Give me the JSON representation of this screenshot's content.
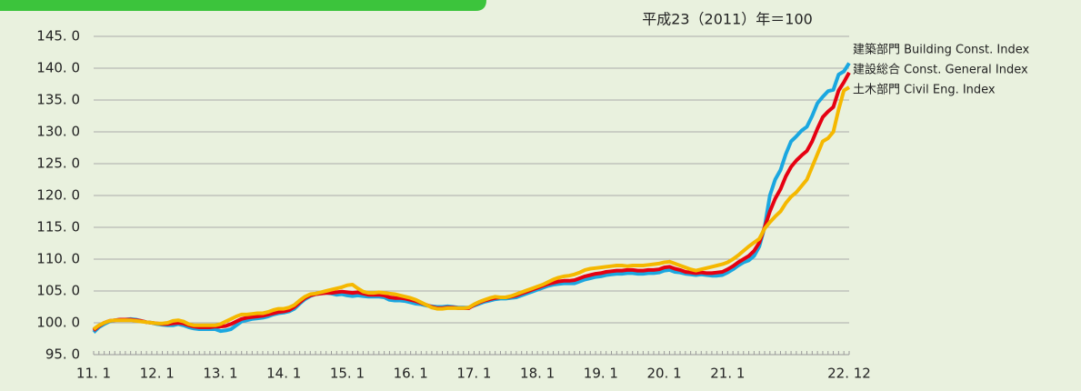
{
  "chart_data": {
    "type": "line",
    "annotation": "平成23（2011）年＝100",
    "categories": [
      "11. 1",
      null,
      null,
      null,
      null,
      null,
      null,
      null,
      null,
      null,
      null,
      null,
      "12. 1",
      null,
      null,
      null,
      null,
      null,
      null,
      null,
      null,
      null,
      null,
      null,
      "13. 1",
      null,
      null,
      null,
      null,
      null,
      null,
      null,
      null,
      null,
      null,
      null,
      "14. 1",
      null,
      null,
      null,
      null,
      null,
      null,
      null,
      null,
      null,
      null,
      null,
      "15. 1",
      null,
      null,
      null,
      null,
      null,
      null,
      null,
      null,
      null,
      null,
      null,
      "16. 1",
      null,
      null,
      null,
      null,
      null,
      null,
      null,
      null,
      null,
      null,
      null,
      "17. 1",
      null,
      null,
      null,
      null,
      null,
      null,
      null,
      null,
      null,
      null,
      null,
      "18. 1",
      null,
      null,
      null,
      null,
      null,
      null,
      null,
      null,
      null,
      null,
      null,
      "19. 1",
      null,
      null,
      null,
      null,
      null,
      null,
      null,
      null,
      null,
      null,
      null,
      "20. 1",
      null,
      null,
      null,
      null,
      null,
      null,
      null,
      null,
      null,
      null,
      null,
      "21. 1",
      null,
      null,
      null,
      null,
      null,
      null,
      null,
      null,
      null,
      null,
      null,
      null,
      null,
      null,
      null,
      null,
      null,
      null,
      null,
      null,
      null,
      null,
      "22. 12"
    ],
    "series": [
      {
        "name": "建築部門  Building Const. Index",
        "color": "#1aa7e0",
        "values": [
          98.5,
          99.3,
          99.8,
          100.2,
          100.4,
          100.5,
          100.5,
          100.6,
          100.5,
          100.3,
          100.1,
          100.0,
          99.8,
          99.7,
          99.6,
          99.6,
          99.8,
          99.6,
          99.3,
          99.1,
          99.0,
          99.0,
          99.0,
          99.0,
          98.7,
          98.8,
          99.0,
          99.6,
          100.2,
          100.4,
          100.6,
          100.7,
          100.8,
          101.0,
          101.3,
          101.5,
          101.6,
          101.8,
          102.2,
          103.0,
          103.7,
          104.2,
          104.5,
          104.6,
          104.7,
          104.6,
          104.4,
          104.5,
          104.3,
          104.2,
          104.3,
          104.2,
          104.1,
          104.1,
          104.1,
          104.0,
          103.6,
          103.5,
          103.5,
          103.4,
          103.2,
          103.0,
          102.9,
          102.7,
          102.6,
          102.5,
          102.5,
          102.6,
          102.5,
          102.4,
          102.4,
          102.4,
          102.7,
          103.0,
          103.3,
          103.5,
          103.7,
          103.8,
          103.8,
          103.9,
          104.0,
          104.3,
          104.6,
          104.9,
          105.2,
          105.5,
          105.8,
          106.0,
          106.1,
          106.2,
          106.2,
          106.2,
          106.5,
          106.8,
          107.0,
          107.2,
          107.3,
          107.5,
          107.6,
          107.7,
          107.7,
          107.8,
          107.8,
          107.7,
          107.7,
          107.8,
          107.8,
          107.9,
          108.2,
          108.3,
          108.0,
          107.9,
          107.7,
          107.6,
          107.5,
          107.6,
          107.5,
          107.4,
          107.4,
          107.5,
          107.9,
          108.4,
          109.0,
          109.5,
          109.8,
          110.5,
          112.0,
          115.0,
          120.0,
          122.5,
          124.0,
          126.5,
          128.5,
          129.3,
          130.2,
          130.8,
          132.5,
          134.5,
          135.5,
          136.4,
          136.6,
          139.0,
          139.5,
          140.8
        ]
      },
      {
        "name": "建設総合  Const. General Index",
        "color": "#e60012",
        "values": [
          98.8,
          99.5,
          100.0,
          100.3,
          100.4,
          100.5,
          100.5,
          100.5,
          100.4,
          100.3,
          100.1,
          100.0,
          99.9,
          99.8,
          99.8,
          99.9,
          100.0,
          99.9,
          99.6,
          99.4,
          99.3,
          99.3,
          99.3,
          99.4,
          99.4,
          99.5,
          99.8,
          100.2,
          100.6,
          100.8,
          100.9,
          101.0,
          101.1,
          101.3,
          101.5,
          101.7,
          101.8,
          102.0,
          102.5,
          103.2,
          103.9,
          104.3,
          104.5,
          104.6,
          104.7,
          104.7,
          104.8,
          104.9,
          104.8,
          104.7,
          104.8,
          104.6,
          104.4,
          104.4,
          104.4,
          104.3,
          104.0,
          103.9,
          103.9,
          103.8,
          103.6,
          103.4,
          103.1,
          102.8,
          102.5,
          102.3,
          102.3,
          102.4,
          102.4,
          102.3,
          102.3,
          102.3,
          102.8,
          103.2,
          103.5,
          103.7,
          103.9,
          104.0,
          104.0,
          104.1,
          104.3,
          104.6,
          104.9,
          105.2,
          105.5,
          105.8,
          106.1,
          106.3,
          106.5,
          106.6,
          106.6,
          106.7,
          107.0,
          107.3,
          107.5,
          107.7,
          107.8,
          108.0,
          108.1,
          108.2,
          108.2,
          108.3,
          108.3,
          108.2,
          108.2,
          108.3,
          108.3,
          108.4,
          108.7,
          108.8,
          108.5,
          108.3,
          108.0,
          107.9,
          107.8,
          107.9,
          107.8,
          107.8,
          107.9,
          108.0,
          108.4,
          108.9,
          109.5,
          110.0,
          110.5,
          111.3,
          112.6,
          115.0,
          117.5,
          119.5,
          121.0,
          123.0,
          124.5,
          125.5,
          126.3,
          127.0,
          128.5,
          130.5,
          132.3,
          133.2,
          133.9,
          136.5,
          137.8,
          139.3
        ]
      },
      {
        "name": "土木部門  Civil Eng. Index",
        "color": "#f5b800",
        "values": [
          99.0,
          99.6,
          100.0,
          100.3,
          100.4,
          100.4,
          100.4,
          100.4,
          100.3,
          100.2,
          100.1,
          100.0,
          99.9,
          99.9,
          100.0,
          100.3,
          100.4,
          100.2,
          99.8,
          99.6,
          99.6,
          99.6,
          99.6,
          99.6,
          99.8,
          100.2,
          100.6,
          101.0,
          101.3,
          101.3,
          101.4,
          101.5,
          101.5,
          101.7,
          102.0,
          102.2,
          102.2,
          102.4,
          102.8,
          103.5,
          104.1,
          104.5,
          104.6,
          104.8,
          105.0,
          105.2,
          105.4,
          105.6,
          105.9,
          106.0,
          105.4,
          104.9,
          104.7,
          104.7,
          104.8,
          104.7,
          104.6,
          104.5,
          104.3,
          104.1,
          103.9,
          103.6,
          103.2,
          102.8,
          102.4,
          102.2,
          102.2,
          102.3,
          102.3,
          102.3,
          102.3,
          102.4,
          102.9,
          103.3,
          103.6,
          103.9,
          104.1,
          104.0,
          104.0,
          104.2,
          104.5,
          104.8,
          105.1,
          105.4,
          105.7,
          106.0,
          106.4,
          106.8,
          107.1,
          107.3,
          107.4,
          107.6,
          107.9,
          108.3,
          108.5,
          108.6,
          108.7,
          108.8,
          108.9,
          109.0,
          109.0,
          108.9,
          109.0,
          109.0,
          109.0,
          109.1,
          109.2,
          109.3,
          109.5,
          109.6,
          109.3,
          109.0,
          108.7,
          108.4,
          108.2,
          108.4,
          108.6,
          108.8,
          109.0,
          109.2,
          109.5,
          110.0,
          110.6,
          111.3,
          112.0,
          112.6,
          113.2,
          114.8,
          115.8,
          116.7,
          117.5,
          118.8,
          119.8,
          120.5,
          121.5,
          122.5,
          124.5,
          126.5,
          128.5,
          129.0,
          130.0,
          133.5,
          136.5,
          137.0
        ]
      }
    ],
    "ylim": [
      95,
      145
    ],
    "yticks": [
      {
        "value": 95,
        "label": "95. 0"
      },
      {
        "value": 100,
        "label": "100. 0"
      },
      {
        "value": 105,
        "label": "105. 0"
      },
      {
        "value": 110,
        "label": "110. 0"
      },
      {
        "value": 115,
        "label": "115. 0"
      },
      {
        "value": 120,
        "label": "120. 0"
      },
      {
        "value": 125,
        "label": "125. 0"
      },
      {
        "value": 130,
        "label": "130. 0"
      },
      {
        "value": 135,
        "label": "135. 0"
      },
      {
        "value": 140,
        "label": "140. 0"
      },
      {
        "value": 145,
        "label": "145. 0"
      }
    ],
    "grid": true
  }
}
